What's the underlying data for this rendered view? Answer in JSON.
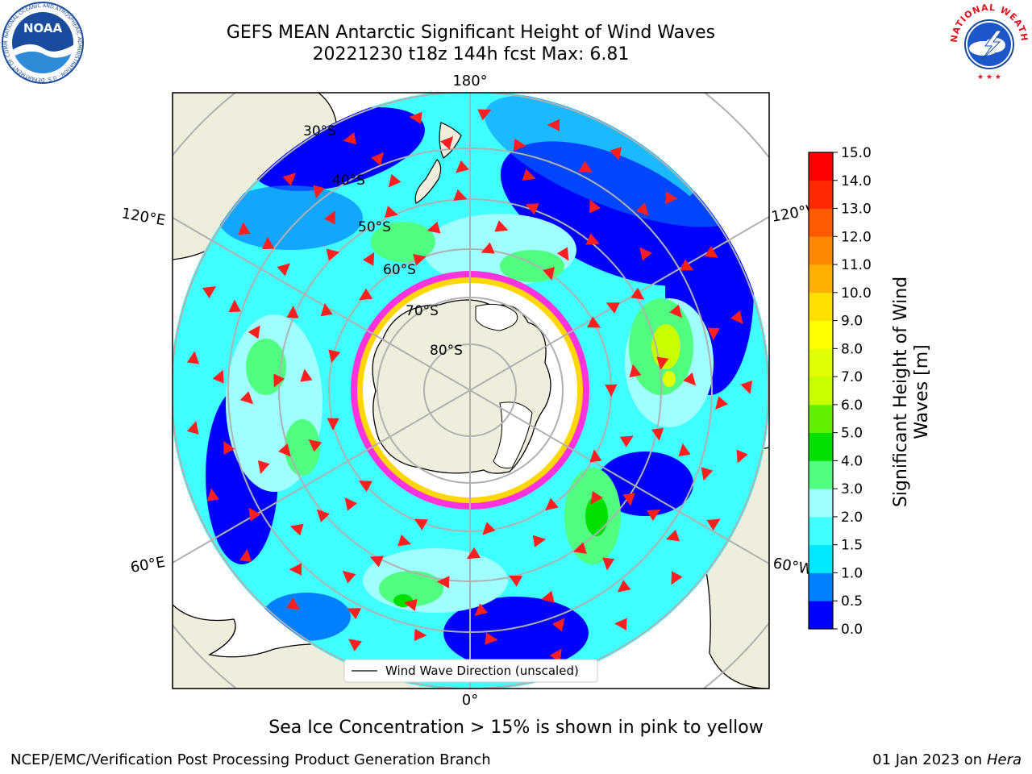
{
  "header": {
    "title_line1": "GEFS MEAN Antarctic Significant Height of Wind Waves",
    "title_line2": "20221230 t18z 144h fcst   Max: 6.81",
    "left_logo": {
      "icon": "noaa-logo-icon",
      "text": "NOAA",
      "ring_text": "NATIONAL OCEANIC AND ATMOSPHERIC ADMINISTRATION · U.S. DEPARTMENT OF COMMERCE"
    },
    "right_logo": {
      "icon": "nws-logo-icon",
      "ring_text": "NATIONAL WEATHER SERVICE"
    }
  },
  "map": {
    "projection": "South Polar Stereographic",
    "longitude_labels": {
      "top": "180°",
      "bottom": "0°",
      "left_upper": "120°E",
      "left_lower": "60°E",
      "right_upper": "120°W",
      "right_lower": "60°W"
    },
    "latitude_labels": [
      "30°S",
      "40°S",
      "50°S",
      "60°S",
      "70°S",
      "80°S"
    ],
    "legend_label": "Wind Wave Direction (unscaled)",
    "colors": {
      "land": "#efeedc",
      "grid": "#b0b0b0",
      "arrows": "#ff1f1f",
      "ice": [
        "#ff33dd",
        "#ffd700",
        "#ffffff"
      ]
    }
  },
  "colorbar": {
    "label_line1": "Significant Height of Wind",
    "label_line2": "Waves [m]",
    "ticks": [
      "0.0",
      "0.5",
      "1.0",
      "1.5",
      "2.0",
      "3.0",
      "4.0",
      "5.0",
      "6.0",
      "7.0",
      "8.0",
      "9.0",
      "10.0",
      "11.0",
      "12.0",
      "13.0",
      "14.0",
      "15.0"
    ],
    "colors": [
      "#0000ff",
      "#0080ff",
      "#00e8ff",
      "#40ffff",
      "#a0ffff",
      "#50ff80",
      "#00e000",
      "#60f000",
      "#c8ff00",
      "#e0ff00",
      "#ffff00",
      "#ffe000",
      "#ffb000",
      "#ff8800",
      "#ff5a00",
      "#ff2800",
      "#ff0000"
    ]
  },
  "caption": "Sea Ice Concentration > 15% is shown in pink to yellow",
  "footer": {
    "left": "NCEP/EMC/Verification Post Processing Product Generation Branch",
    "right_date": "01 Jan 2023 on",
    "right_machine": "Hera"
  }
}
